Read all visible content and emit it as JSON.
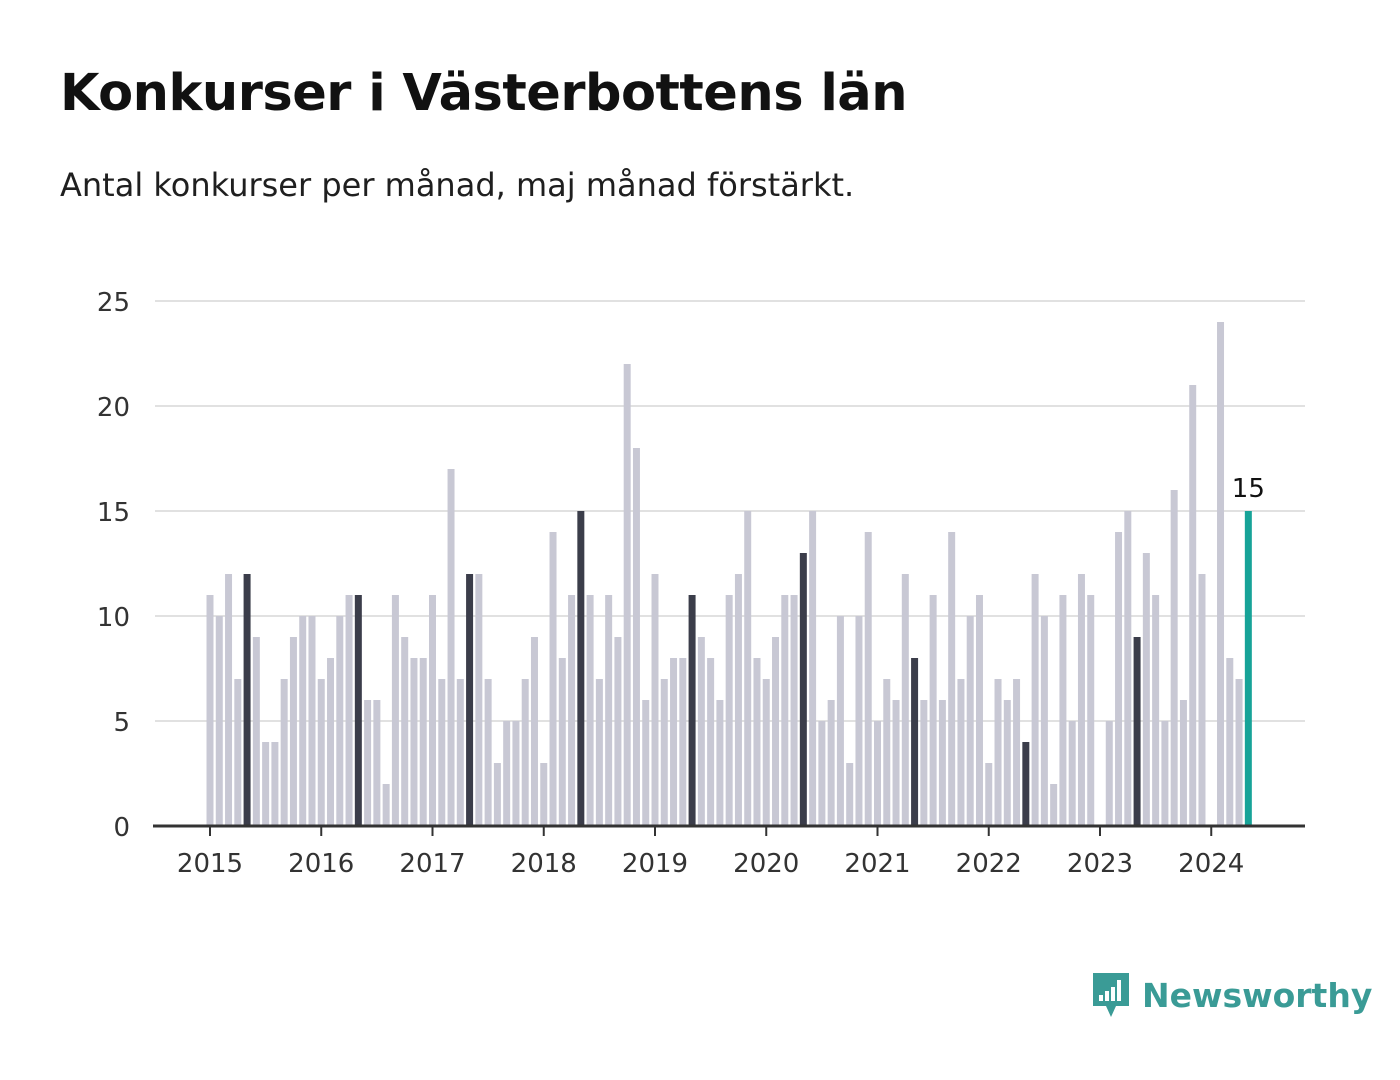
{
  "title": "Konkurser i Västerbottens län",
  "subtitle": "Antal konkurser per månad, maj månad förstärkt.",
  "brand": "Newsworthy",
  "colors": {
    "bar": "#c8c8d4",
    "highlight": "#3b3d4a",
    "latest": "#17a398",
    "grid": "#e1e1e1",
    "axis": "#333333",
    "brand": "#3a9b96"
  },
  "chart_data": {
    "type": "bar",
    "title": "Konkurser i Västerbottens län",
    "subtitle": "Antal konkurser per månad, maj månad förstärkt.",
    "xlabel": "",
    "ylabel": "",
    "ylim": [
      0,
      25
    ],
    "yticks": [
      0,
      5,
      10,
      15,
      20,
      25
    ],
    "xticks": [
      "2015",
      "2016",
      "2017",
      "2018",
      "2019",
      "2020",
      "2021",
      "2022",
      "2023",
      "2024"
    ],
    "start": "2015-01",
    "grid": true,
    "values": [
      11,
      10,
      12,
      7,
      12,
      9,
      4,
      4,
      7,
      9,
      10,
      10,
      7,
      8,
      10,
      11,
      11,
      6,
      6,
      2,
      11,
      9,
      8,
      8,
      11,
      7,
      17,
      7,
      12,
      12,
      7,
      3,
      5,
      5,
      7,
      9,
      3,
      14,
      8,
      11,
      15,
      11,
      7,
      11,
      9,
      22,
      18,
      6,
      12,
      7,
      8,
      8,
      11,
      9,
      8,
      6,
      11,
      12,
      15,
      8,
      7,
      9,
      11,
      11,
      13,
      15,
      5,
      6,
      10,
      3,
      10,
      14,
      5,
      7,
      6,
      12,
      8,
      6,
      11,
      6,
      14,
      7,
      10,
      11,
      3,
      7,
      6,
      7,
      4,
      12,
      10,
      2,
      11,
      5,
      12,
      11,
      0,
      5,
      14,
      15,
      9,
      13,
      11,
      5,
      16,
      6,
      21,
      12,
      0,
      24,
      8,
      7,
      15
    ],
    "highlight_month": 5,
    "latest_label": "15"
  }
}
